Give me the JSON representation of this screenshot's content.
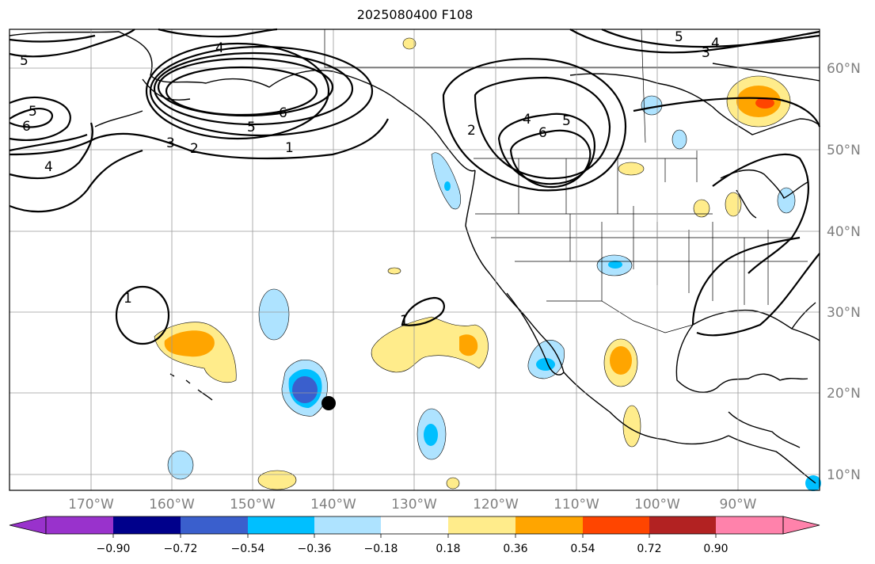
{
  "title": "2025080400 F108",
  "map": {
    "lon_labels": [
      "170°W",
      "160°W",
      "150°W",
      "140°W",
      "130°W",
      "120°W",
      "110°W",
      "100°W",
      "90°W"
    ],
    "lat_labels": [
      "60°N",
      "50°N",
      "40°N",
      "30°N",
      "20°N",
      "10°N"
    ],
    "contour_labels": [
      "1",
      "2",
      "3",
      "4",
      "5",
      "6"
    ],
    "marker": "filled-circle",
    "colors": {
      "land_outline": "#000000",
      "grid": "#9a9a9a",
      "contour": "#000000"
    }
  },
  "colorbar": {
    "ticks": [
      "−0.90",
      "−0.72",
      "−0.54",
      "−0.36",
      "−0.18",
      "0.18",
      "0.36",
      "0.54",
      "0.72",
      "0.90"
    ],
    "colors": [
      "#9932cc",
      "#00008b",
      "#3a5fcd",
      "#00bfff",
      "#aee3ff",
      "#ffffff",
      "#ffec8b",
      "#ffa500",
      "#ff4500",
      "#b22222",
      "#ff82ab"
    ]
  }
}
